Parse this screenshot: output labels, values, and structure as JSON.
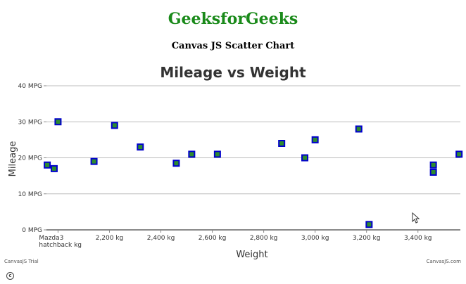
{
  "page": {
    "site_title": "GeeksforGeeks",
    "subtitle": "Canvas JS Scatter Chart"
  },
  "chart_data": {
    "type": "scatter",
    "title": "Mileage vs Weight",
    "xlabel": "Weight",
    "ylabel": "Mileage",
    "x_ticks": [
      "2,200 kg",
      "2,400 kg",
      "2,600 kg",
      "2,800 kg",
      "3,000 kg",
      "3,200 kg",
      "3,400 kg"
    ],
    "x_tick_values": [
      2200,
      2400,
      2600,
      2800,
      3000,
      3200,
      3400
    ],
    "first_x_label": [
      "Mazda3",
      "hatchback kg"
    ],
    "first_x_label_value": 2000,
    "y_ticks": [
      "0 MPG",
      "10 MPG",
      "20 MPG",
      "30 MPG",
      "40 MPG"
    ],
    "y_tick_values": [
      0,
      10,
      20,
      30,
      40
    ],
    "xlim": [
      1955,
      3565
    ],
    "ylim": [
      0,
      40
    ],
    "grid": true,
    "marker": {
      "color": "#2e8b2e",
      "border_color": "#0000cc"
    },
    "series": [
      {
        "points": [
          {
            "x": 1958,
            "y": 18
          },
          {
            "x": 1985,
            "y": 17
          },
          {
            "x": 2000,
            "y": 30
          },
          {
            "x": 2140,
            "y": 19
          },
          {
            "x": 2220,
            "y": 29
          },
          {
            "x": 2320,
            "y": 23
          },
          {
            "x": 2460,
            "y": 18.5
          },
          {
            "x": 2520,
            "y": 21
          },
          {
            "x": 2620,
            "y": 21
          },
          {
            "x": 2870,
            "y": 24
          },
          {
            "x": 2960,
            "y": 20
          },
          {
            "x": 3000,
            "y": 25
          },
          {
            "x": 3170,
            "y": 28
          },
          {
            "x": 3210,
            "y": 1.5
          },
          {
            "x": 3460,
            "y": 18
          },
          {
            "x": 3460,
            "y": 16
          },
          {
            "x": 3560,
            "y": 21
          }
        ]
      }
    ]
  },
  "credits": {
    "trial": "CanvasJS Trial",
    "site": "CanvasJS.com"
  }
}
